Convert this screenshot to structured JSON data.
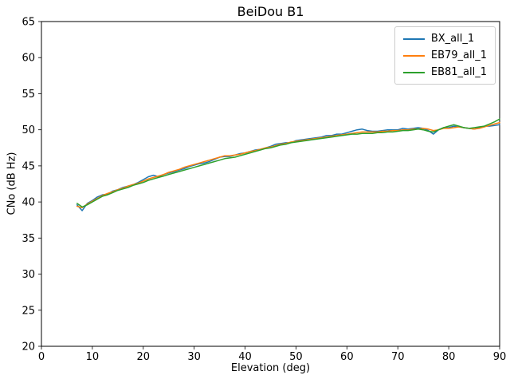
{
  "chart_data": {
    "type": "line",
    "title": "BeiDou B1",
    "xlabel": "Elevation (deg)",
    "ylabel": "CNo (dB Hz)",
    "xlim": [
      0,
      90
    ],
    "ylim": [
      20,
      65
    ],
    "xticks": [
      0,
      10,
      20,
      30,
      40,
      50,
      60,
      70,
      80,
      90
    ],
    "yticks": [
      20,
      25,
      30,
      35,
      40,
      45,
      50,
      55,
      60,
      65
    ],
    "grid": false,
    "legend_position": "upper right",
    "x": [
      7,
      8,
      9,
      10,
      11,
      12,
      13,
      14,
      15,
      16,
      17,
      18,
      19,
      20,
      21,
      22,
      23,
      24,
      25,
      26,
      27,
      28,
      29,
      30,
      31,
      32,
      33,
      34,
      35,
      36,
      37,
      38,
      39,
      40,
      41,
      42,
      43,
      44,
      45,
      46,
      47,
      48,
      49,
      50,
      51,
      52,
      53,
      54,
      55,
      56,
      57,
      58,
      59,
      60,
      61,
      62,
      63,
      64,
      65,
      66,
      67,
      68,
      69,
      70,
      71,
      72,
      73,
      74,
      75,
      76,
      77,
      78,
      79,
      80,
      81,
      82,
      83,
      84,
      85,
      86,
      87,
      88,
      89,
      90
    ],
    "series": [
      {
        "name": "BX_all_1",
        "color": "#1f77b4",
        "values": [
          39.6,
          38.8,
          39.8,
          40.2,
          40.7,
          41.0,
          41.1,
          41.5,
          41.7,
          42.0,
          42.2,
          42.4,
          42.7,
          43.1,
          43.5,
          43.7,
          43.5,
          43.8,
          44.0,
          44.2,
          44.4,
          44.6,
          44.9,
          45.1,
          45.3,
          45.4,
          45.6,
          45.9,
          46.2,
          46.3,
          46.3,
          46.5,
          46.7,
          46.8,
          47.0,
          47.2,
          47.3,
          47.5,
          47.7,
          48.0,
          48.1,
          48.2,
          48.2,
          48.5,
          48.6,
          48.7,
          48.8,
          48.9,
          49.0,
          49.2,
          49.2,
          49.4,
          49.4,
          49.6,
          49.8,
          50.0,
          50.1,
          49.9,
          49.8,
          49.8,
          49.9,
          50.0,
          50.0,
          50.0,
          50.2,
          50.1,
          50.2,
          50.3,
          50.2,
          49.9,
          49.4,
          50.0,
          50.3,
          50.3,
          50.5,
          50.4,
          50.3,
          50.2,
          50.1,
          50.3,
          50.5,
          50.5,
          50.6,
          50.7
        ]
      },
      {
        "name": "EB79_all_1",
        "color": "#ff7f0e",
        "values": [
          39.4,
          39.2,
          39.7,
          40.1,
          40.5,
          40.9,
          41.2,
          41.4,
          41.7,
          41.9,
          42.2,
          42.4,
          42.6,
          42.9,
          43.2,
          43.4,
          43.6,
          43.8,
          44.1,
          44.3,
          44.5,
          44.8,
          45.0,
          45.2,
          45.4,
          45.6,
          45.8,
          46.0,
          46.2,
          46.4,
          46.4,
          46.5,
          46.6,
          46.8,
          47.0,
          47.1,
          47.3,
          47.5,
          47.6,
          47.8,
          48.0,
          48.1,
          48.3,
          48.4,
          48.5,
          48.6,
          48.7,
          48.8,
          48.9,
          49.0,
          49.1,
          49.2,
          49.3,
          49.4,
          49.5,
          49.6,
          49.7,
          49.7,
          49.7,
          49.7,
          49.8,
          49.8,
          49.9,
          49.9,
          50.0,
          50.0,
          50.1,
          50.1,
          50.2,
          50.1,
          49.9,
          50.0,
          50.2,
          50.2,
          50.3,
          50.4,
          50.3,
          50.2,
          50.1,
          50.2,
          50.4,
          50.6,
          50.8,
          51.0
        ]
      },
      {
        "name": "EB81_all_1",
        "color": "#2ca02c",
        "values": [
          39.8,
          39.3,
          39.6,
          40.0,
          40.4,
          40.8,
          41.0,
          41.3,
          41.6,
          41.8,
          42.0,
          42.3,
          42.5,
          42.7,
          43.0,
          43.2,
          43.4,
          43.6,
          43.8,
          44.0,
          44.2,
          44.4,
          44.6,
          44.8,
          45.0,
          45.2,
          45.4,
          45.6,
          45.8,
          46.0,
          46.1,
          46.2,
          46.4,
          46.6,
          46.8,
          47.0,
          47.2,
          47.4,
          47.5,
          47.7,
          47.9,
          48.0,
          48.2,
          48.3,
          48.4,
          48.5,
          48.6,
          48.7,
          48.8,
          48.9,
          49.0,
          49.1,
          49.2,
          49.3,
          49.4,
          49.4,
          49.5,
          49.5,
          49.5,
          49.6,
          49.6,
          49.7,
          49.7,
          49.8,
          49.9,
          49.9,
          50.0,
          50.1,
          50.0,
          49.8,
          49.7,
          50.0,
          50.3,
          50.5,
          50.7,
          50.5,
          50.3,
          50.2,
          50.3,
          50.4,
          50.5,
          50.8,
          51.1,
          51.5
        ]
      }
    ]
  }
}
